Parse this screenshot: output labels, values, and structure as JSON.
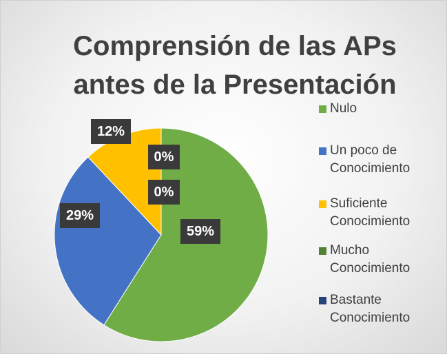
{
  "chart_data": {
    "type": "pie",
    "title": "Comprensión de las APs antes de la Presentación",
    "categories": [
      "Nulo",
      "Un poco de Conocimiento",
      "Suficiente Conocimiento",
      "Mucho Conocimiento",
      "Bastante Conocimiento"
    ],
    "values": [
      59,
      29,
      12,
      0,
      0
    ],
    "value_labels": [
      "59%",
      "29%",
      "12%",
      "0%",
      "0%"
    ],
    "colors": [
      "#70ad47",
      "#4472c4",
      "#ffc000",
      "#548235",
      "#264478"
    ],
    "legend": "right"
  }
}
